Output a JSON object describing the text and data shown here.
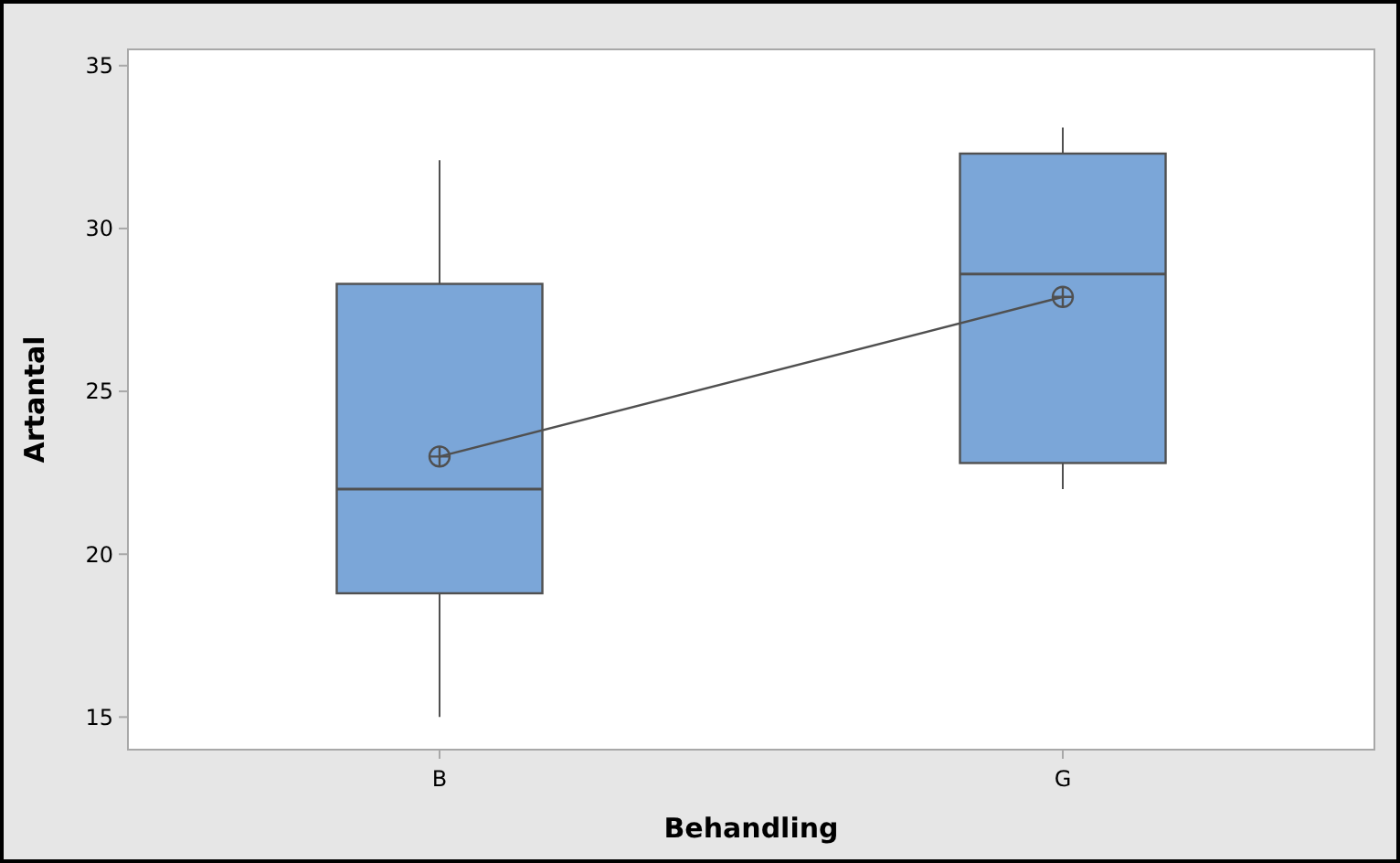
{
  "chart_data": {
    "type": "box",
    "xlabel": "Behandling",
    "ylabel": "Artantal",
    "categories": [
      "B",
      "G"
    ],
    "ylim": [
      14,
      35.5
    ],
    "yticks": [
      15,
      20,
      25,
      30,
      35
    ],
    "grid": false,
    "series": [
      {
        "color": "#7ba6d8",
        "boxes": [
          {
            "low": 15,
            "q1": 18.8,
            "median": 22,
            "q3": 28.3,
            "high": 32.1
          },
          {
            "low": 22,
            "q1": 22.8,
            "median": 28.6,
            "q3": 32.3,
            "high": 33.1
          }
        ]
      },
      {
        "type": "line",
        "color": "#505050",
        "marker": "circle",
        "values": [
          23,
          27.9
        ]
      }
    ]
  }
}
